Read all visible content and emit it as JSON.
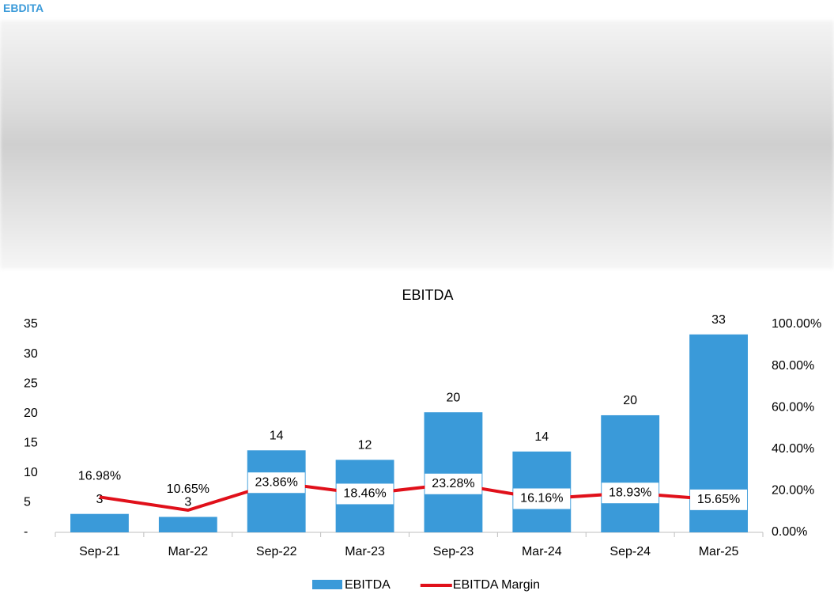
{
  "header": {
    "title": "EBDITA"
  },
  "chart_data": {
    "type": "bar",
    "title": "EBITDA",
    "categories": [
      "Sep-21",
      "Mar-22",
      "Sep-22",
      "Mar-23",
      "Sep-23",
      "Mar-24",
      "Sep-24",
      "Mar-25"
    ],
    "series": [
      {
        "name": "EBITDA",
        "type": "bar",
        "color": "#3a9ad9",
        "values": [
          3.1,
          2.6,
          13.8,
          12.2,
          20.2,
          13.6,
          19.7,
          33.3
        ],
        "value_labels": [
          "3",
          "3",
          "14",
          "12",
          "20",
          "14",
          "20",
          "33"
        ]
      },
      {
        "name": "EBITDA Margin",
        "type": "line",
        "axis": "y2",
        "color": "#e0101a",
        "values": [
          16.98,
          10.65,
          23.86,
          18.46,
          23.28,
          16.16,
          18.93,
          15.65
        ],
        "value_labels": [
          "16.98%",
          "10.65%",
          "23.86%",
          "18.46%",
          "23.28%",
          "16.16%",
          "18.93%",
          "15.65%"
        ]
      }
    ],
    "ylim": [
      0,
      35
    ],
    "yticks": [
      {
        "value": 0,
        "label": "-"
      },
      5,
      10,
      15,
      20,
      25,
      30,
      35
    ],
    "y2lim": [
      0,
      100
    ],
    "y2ticks": [
      {
        "value": 0,
        "label": "0.00%"
      },
      {
        "value": 20,
        "label": "20.00%"
      },
      {
        "value": 40,
        "label": "40.00%"
      },
      {
        "value": 60,
        "label": "60.00%"
      },
      {
        "value": 80,
        "label": "80.00%"
      },
      {
        "value": 100,
        "label": "100.00%"
      }
    ],
    "legend": "bottom"
  }
}
